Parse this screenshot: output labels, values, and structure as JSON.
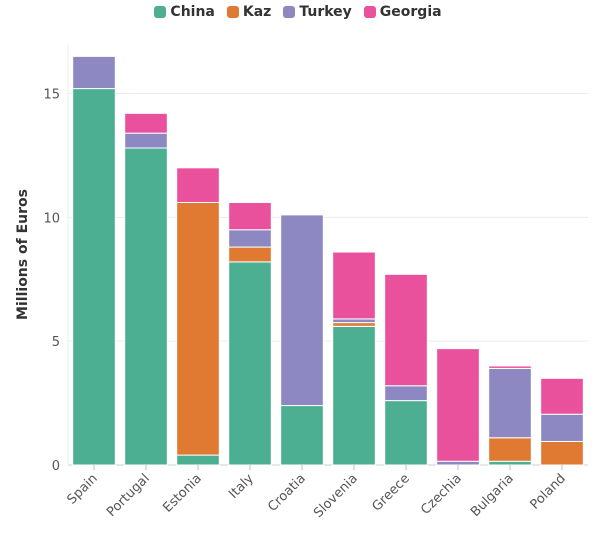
{
  "chart_data": {
    "type": "bar",
    "stacked": true,
    "ylabel": "Millions of Euros",
    "ylim": [
      0,
      17
    ],
    "yticks": [
      0,
      5,
      10,
      15
    ],
    "legend_position": "top-center",
    "grid": true,
    "categories": [
      "Spain",
      "Portugal",
      "Estonia",
      "Italy",
      "Croatia",
      "Slovenia",
      "Greece",
      "Czechia",
      "Bulgaria",
      "Poland"
    ],
    "series": [
      {
        "name": "China",
        "color": "#4caf91",
        "values": [
          15.2,
          12.8,
          0.4,
          8.2,
          2.4,
          5.6,
          2.6,
          0.0,
          0.15,
          0.0
        ]
      },
      {
        "name": "Kaz",
        "color": "#e07a32",
        "values": [
          0.0,
          0.0,
          10.2,
          0.6,
          0.0,
          0.15,
          0.0,
          0.0,
          0.95,
          0.95
        ]
      },
      {
        "name": "Turkey",
        "color": "#8e88c2",
        "values": [
          1.3,
          0.6,
          0.0,
          0.7,
          7.7,
          0.15,
          0.6,
          0.15,
          2.8,
          1.1
        ]
      },
      {
        "name": "Georgia",
        "color": "#ea519c",
        "values": [
          0.0,
          0.8,
          1.4,
          1.1,
          0.0,
          2.7,
          4.5,
          4.55,
          0.1,
          1.45
        ]
      }
    ]
  }
}
